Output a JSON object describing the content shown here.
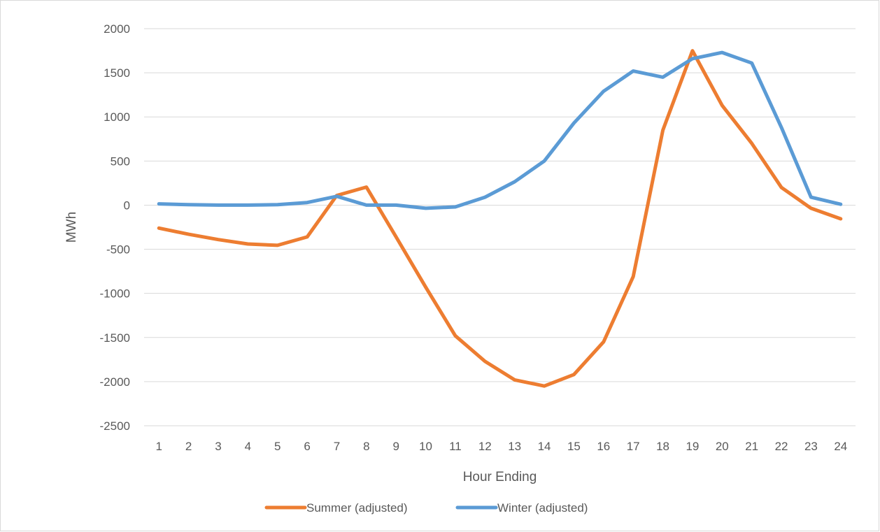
{
  "chart_data": {
    "type": "line",
    "title": "",
    "xlabel": "Hour Ending",
    "ylabel": "MWh",
    "x": [
      "1",
      "2",
      "3",
      "4",
      "5",
      "6",
      "7",
      "8",
      "9",
      "10",
      "11",
      "12",
      "13",
      "14",
      "15",
      "16",
      "17",
      "18",
      "19",
      "20",
      "21",
      "22",
      "23",
      "24"
    ],
    "ylim": [
      -2500,
      2000
    ],
    "yticks": [
      2000,
      1500,
      1000,
      500,
      0,
      -500,
      -1000,
      -1500,
      -2000,
      -2500
    ],
    "grid": true,
    "legend_position": "bottom",
    "series": [
      {
        "name": "Summer (adjusted)",
        "color": "#ed7d31",
        "values": [
          -260,
          -330,
          -390,
          -440,
          -455,
          -360,
          110,
          205,
          -360,
          -930,
          -1480,
          -1770,
          -1980,
          -2050,
          -1920,
          -1550,
          -810,
          850,
          1750,
          1130,
          700,
          200,
          -35,
          -155
        ]
      },
      {
        "name": "Winter (adjusted)",
        "color": "#5b9bd5",
        "values": [
          15,
          5,
          0,
          0,
          5,
          30,
          100,
          0,
          0,
          -35,
          -20,
          90,
          265,
          500,
          930,
          1290,
          1520,
          1450,
          1660,
          1730,
          1610,
          880,
          90,
          10
        ]
      }
    ]
  }
}
